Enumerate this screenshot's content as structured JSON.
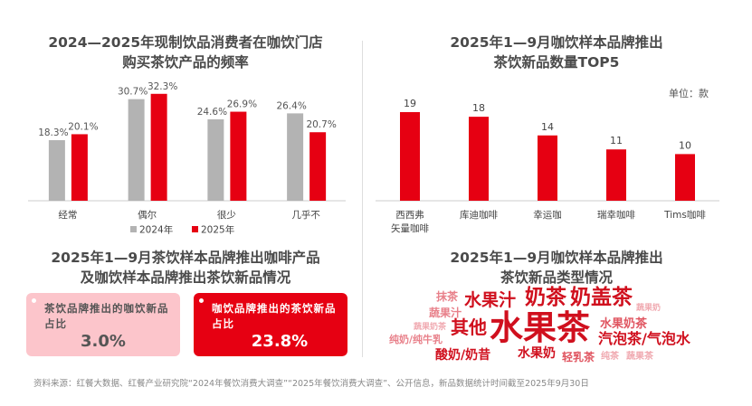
{
  "chart_data": [
    {
      "type": "bar",
      "title": "2024—2025年现制饮品消费者在咖饮门店购买茶饮产品的频率",
      "categories": [
        "经常",
        "偶尔",
        "很少",
        "几乎不"
      ],
      "series": [
        {
          "name": "2024年",
          "values": [
            18.3,
            30.7,
            24.6,
            26.4
          ],
          "labels": [
            "18.3%",
            "30.7%",
            "24.6%",
            "26.4%"
          ],
          "color": "#b3b3b3"
        },
        {
          "name": "2025年",
          "values": [
            20.1,
            32.3,
            26.9,
            20.7
          ],
          "labels": [
            "20.1%",
            "32.3%",
            "26.9%",
            "20.7%"
          ],
          "color": "#e60012"
        }
      ],
      "legend": "bottom",
      "grid": false
    },
    {
      "type": "bar",
      "title": "2025年1—9月咖饮样本品牌推出茶饮新品数量TOP5",
      "unit": "单位：款",
      "categories": [
        "西西弗矢量咖啡",
        "库迪咖啡",
        "幸运咖",
        "瑞幸咖啡",
        "Tims咖啡"
      ],
      "category_lines": [
        [
          "西西弗",
          "矢量咖啡"
        ],
        [
          "库迪咖啡"
        ],
        [
          "幸运咖"
        ],
        [
          "瑞幸咖啡"
        ],
        [
          "Tims咖啡"
        ]
      ],
      "values": [
        19,
        18,
        14,
        11,
        10
      ],
      "color": "#e60012",
      "grid": false
    }
  ],
  "panel3": {
    "title1": "2025年1—9月茶饮样本品牌推出咖啡产品",
    "title2": "及咖饮样本品牌推出茶饮新品情况",
    "cards": [
      {
        "label": "茶饮品牌推出的咖饮新品占比",
        "value": "3.0%"
      },
      {
        "label": "咖饮品牌推出的茶饮新品占比",
        "value": "23.8%"
      }
    ]
  },
  "panel4": {
    "title1": "2025年1—9月咖饮样本品牌推出",
    "title2": "茶饮新品类型情况",
    "words": [
      "抹茶",
      "水果汁",
      "奶茶",
      "奶盖茶",
      "蔬果奶",
      "蔬果汁",
      "蔬果奶茶",
      "其他",
      "水果茶",
      "水果奶茶",
      "纯奶/纯牛乳",
      "汽泡茶/气泡水",
      "酸奶/奶昔",
      "水果奶",
      "轻乳茶",
      "纯茶",
      "蔬果茶"
    ]
  },
  "chart1_title": [
    "2024—2025年现制饮品消费者在咖饮门店",
    "购买茶饮产品的频率"
  ],
  "chart2_title": [
    "2025年1—9月咖饮样本品牌推出",
    "茶饮新品数量TOP5"
  ],
  "source": "资料来源：红餐大数据、红餐产业研究院“2024年餐饮消费大调查”“2025年餐饮消费大调查”、公开信息，新品数据统计时间截至2025年9月30日",
  "colors": {
    "red": "#e60012",
    "gray": "#b3b3b3",
    "pink": "#fcc5cb"
  }
}
